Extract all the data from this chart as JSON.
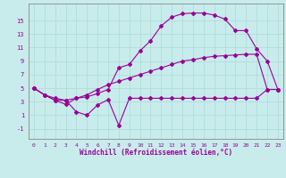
{
  "xlabel": "Windchill (Refroidissement éolien,°C)",
  "bg_color": "#c8ecec",
  "line_color": "#990099",
  "grid_color": "#b0ddd8",
  "yticks": [
    -1,
    1,
    3,
    5,
    7,
    9,
    11,
    13,
    15
  ],
  "xticks": [
    0,
    1,
    2,
    3,
    4,
    5,
    6,
    7,
    8,
    9,
    10,
    11,
    12,
    13,
    14,
    15,
    16,
    17,
    18,
    19,
    20,
    21,
    22,
    23
  ],
  "ylim": [
    -2.5,
    17.5
  ],
  "xlim": [
    -0.5,
    23.5
  ],
  "series_top_x": [
    0,
    1,
    2,
    3,
    4,
    5,
    6,
    7,
    8,
    9,
    10,
    11,
    12,
    13,
    14,
    15,
    16,
    17,
    18,
    19,
    20,
    21,
    22,
    23
  ],
  "series_top_y": [
    5.0,
    4.0,
    3.2,
    2.6,
    3.5,
    3.7,
    4.2,
    4.8,
    8.0,
    8.5,
    10.5,
    12.0,
    14.2,
    15.5,
    16.0,
    16.1,
    16.1,
    15.8,
    15.2,
    13.5,
    13.5,
    10.8,
    9.0,
    4.8
  ],
  "series_mid_x": [
    0,
    1,
    2,
    3,
    4,
    5,
    6,
    7,
    8,
    9,
    10,
    11,
    12,
    13,
    14,
    15,
    16,
    17,
    18,
    19,
    20,
    21,
    22,
    23
  ],
  "series_mid_y": [
    5.0,
    4.0,
    3.5,
    3.2,
    3.5,
    4.0,
    4.8,
    5.5,
    6.0,
    6.5,
    7.0,
    7.5,
    8.0,
    8.5,
    9.0,
    9.2,
    9.5,
    9.7,
    9.8,
    9.9,
    10.0,
    10.0,
    4.8,
    4.8
  ],
  "series_bot_x": [
    0,
    1,
    2,
    3,
    4,
    5,
    6,
    7,
    8,
    9,
    10,
    11,
    12,
    13,
    14,
    15,
    16,
    17,
    18,
    19,
    20,
    21,
    22,
    23
  ],
  "series_bot_y": [
    5.0,
    4.0,
    3.2,
    3.2,
    1.5,
    1.0,
    2.5,
    3.3,
    -0.5,
    3.5,
    3.5,
    3.5,
    3.5,
    3.5,
    3.5,
    3.5,
    3.5,
    3.5,
    3.5,
    3.5,
    3.5,
    3.5,
    4.8,
    4.8
  ]
}
